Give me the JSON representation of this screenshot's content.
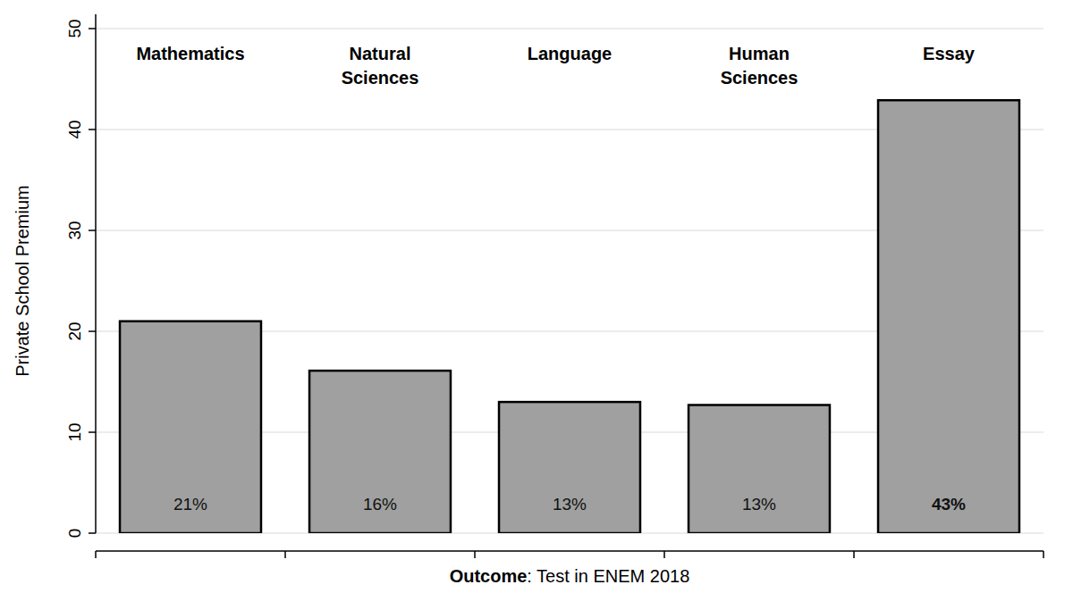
{
  "chart_data": {
    "type": "bar",
    "categories": [
      "Mathematics",
      "Natural Sciences",
      "Language",
      "Human Sciences",
      "Essay"
    ],
    "values": [
      21.0,
      16.1,
      13.0,
      12.7,
      42.9
    ],
    "value_labels": [
      "21%",
      "16%",
      "13%",
      "13%",
      "43%"
    ],
    "data_labels": true,
    "color": "#a0a0a0",
    "y_label": "Private School Premium",
    "x_label": "Outcome: Test in ENEM 2018",
    "ylim": [
      0,
      50
    ],
    "yticks": [
      0,
      10,
      20,
      30,
      40,
      50
    ],
    "grid": true
  }
}
